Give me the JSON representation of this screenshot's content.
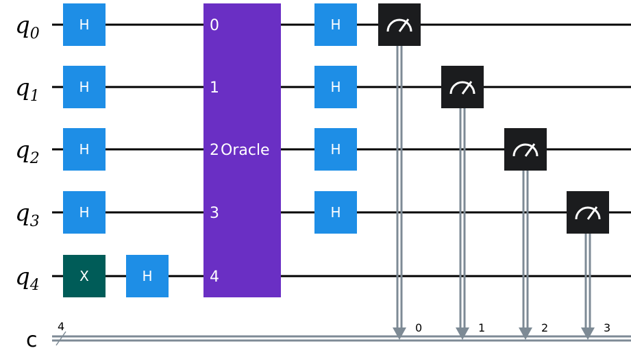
{
  "qubits": [
    {
      "name": "q",
      "index": "0"
    },
    {
      "name": "q",
      "index": "1"
    },
    {
      "name": "q",
      "index": "2"
    },
    {
      "name": "q",
      "index": "3"
    },
    {
      "name": "q",
      "index": "4"
    }
  ],
  "classical_register": {
    "name": "c",
    "width_label": "4"
  },
  "gates": [
    {
      "type": "H",
      "label": "H",
      "qubit": 0,
      "column": 0
    },
    {
      "type": "H",
      "label": "H",
      "qubit": 1,
      "column": 0
    },
    {
      "type": "H",
      "label": "H",
      "qubit": 2,
      "column": 0
    },
    {
      "type": "H",
      "label": "H",
      "qubit": 3,
      "column": 0
    },
    {
      "type": "X",
      "label": "X",
      "qubit": 4,
      "column": 0
    },
    {
      "type": "H",
      "label": "H",
      "qubit": 4,
      "column": 1
    },
    {
      "type": "H",
      "label": "H",
      "qubit": 0,
      "column": 3
    },
    {
      "type": "H",
      "label": "H",
      "qubit": 1,
      "column": 3
    },
    {
      "type": "H",
      "label": "H",
      "qubit": 2,
      "column": 3
    },
    {
      "type": "H",
      "label": "H",
      "qubit": 3,
      "column": 3
    }
  ],
  "oracle": {
    "label": "Oracle",
    "port_labels": [
      "0",
      "1",
      "2",
      "3",
      "4"
    ]
  },
  "measurements": [
    {
      "qubit": 0,
      "bit_label": "0"
    },
    {
      "qubit": 1,
      "bit_label": "1"
    },
    {
      "qubit": 2,
      "bit_label": "2"
    },
    {
      "qubit": 3,
      "bit_label": "3"
    }
  ],
  "colors": {
    "h_gate": "#1e8ee6",
    "x_gate": "#005c58",
    "oracle": "#6a2fc4",
    "measure": "#1b1c1e",
    "classical_wire": "#7d8a95",
    "wire": "#000000"
  }
}
